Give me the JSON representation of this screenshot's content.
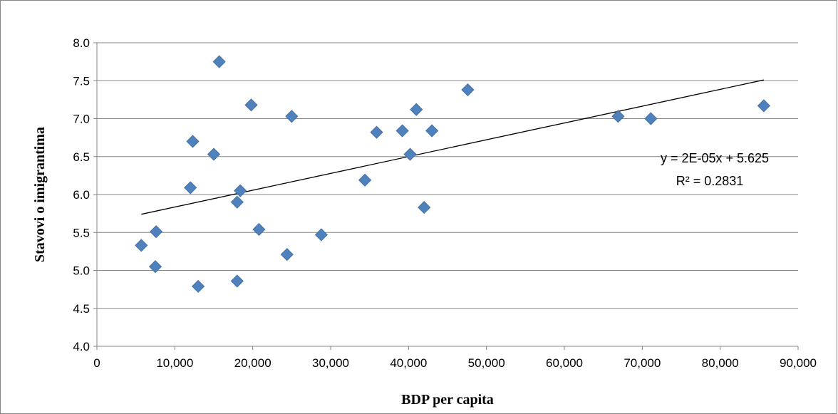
{
  "chart_data": {
    "type": "scatter",
    "title": "",
    "xlabel": "BDP per capita",
    "ylabel": "Stavovi o imigrantima",
    "xlim": [
      0,
      90000
    ],
    "ylim": [
      4.0,
      8.0
    ],
    "x_ticks": [
      "0",
      "10,000",
      "20,000",
      "30,000",
      "40,000",
      "50,000",
      "60,000",
      "70,000",
      "80,000",
      "90,000"
    ],
    "y_ticks": [
      "4.0",
      "4.5",
      "5.0",
      "5.5",
      "6.0",
      "6.5",
      "7.0",
      "7.5",
      "8.0"
    ],
    "grid": "horizontal",
    "marker": "diamond",
    "color": "#4f81bd",
    "points": [
      {
        "x": 5700,
        "y": 5.33
      },
      {
        "x": 7600,
        "y": 5.51
      },
      {
        "x": 7500,
        "y": 5.05
      },
      {
        "x": 12000,
        "y": 6.09
      },
      {
        "x": 12300,
        "y": 6.7
      },
      {
        "x": 13000,
        "y": 4.79
      },
      {
        "x": 15000,
        "y": 6.53
      },
      {
        "x": 15700,
        "y": 7.75
      },
      {
        "x": 18000,
        "y": 5.9
      },
      {
        "x": 18000,
        "y": 4.86
      },
      {
        "x": 18400,
        "y": 6.05
      },
      {
        "x": 19800,
        "y": 7.18
      },
      {
        "x": 20800,
        "y": 5.54
      },
      {
        "x": 24400,
        "y": 5.21
      },
      {
        "x": 25000,
        "y": 7.03
      },
      {
        "x": 28800,
        "y": 5.47
      },
      {
        "x": 34400,
        "y": 6.19
      },
      {
        "x": 35900,
        "y": 6.82
      },
      {
        "x": 39200,
        "y": 6.84
      },
      {
        "x": 40200,
        "y": 6.53
      },
      {
        "x": 41000,
        "y": 7.12
      },
      {
        "x": 42000,
        "y": 5.83
      },
      {
        "x": 43000,
        "y": 6.84
      },
      {
        "x": 47600,
        "y": 7.38
      },
      {
        "x": 66900,
        "y": 7.03
      },
      {
        "x": 71100,
        "y": 7.0
      },
      {
        "x": 85600,
        "y": 7.17
      }
    ],
    "trendline": {
      "type": "linear",
      "x_range": [
        5700,
        85600
      ],
      "y_start": 5.74,
      "y_end": 7.51,
      "equation": "y = 2E-05x + 5.625",
      "r_squared": "R² = 0.2831"
    }
  }
}
